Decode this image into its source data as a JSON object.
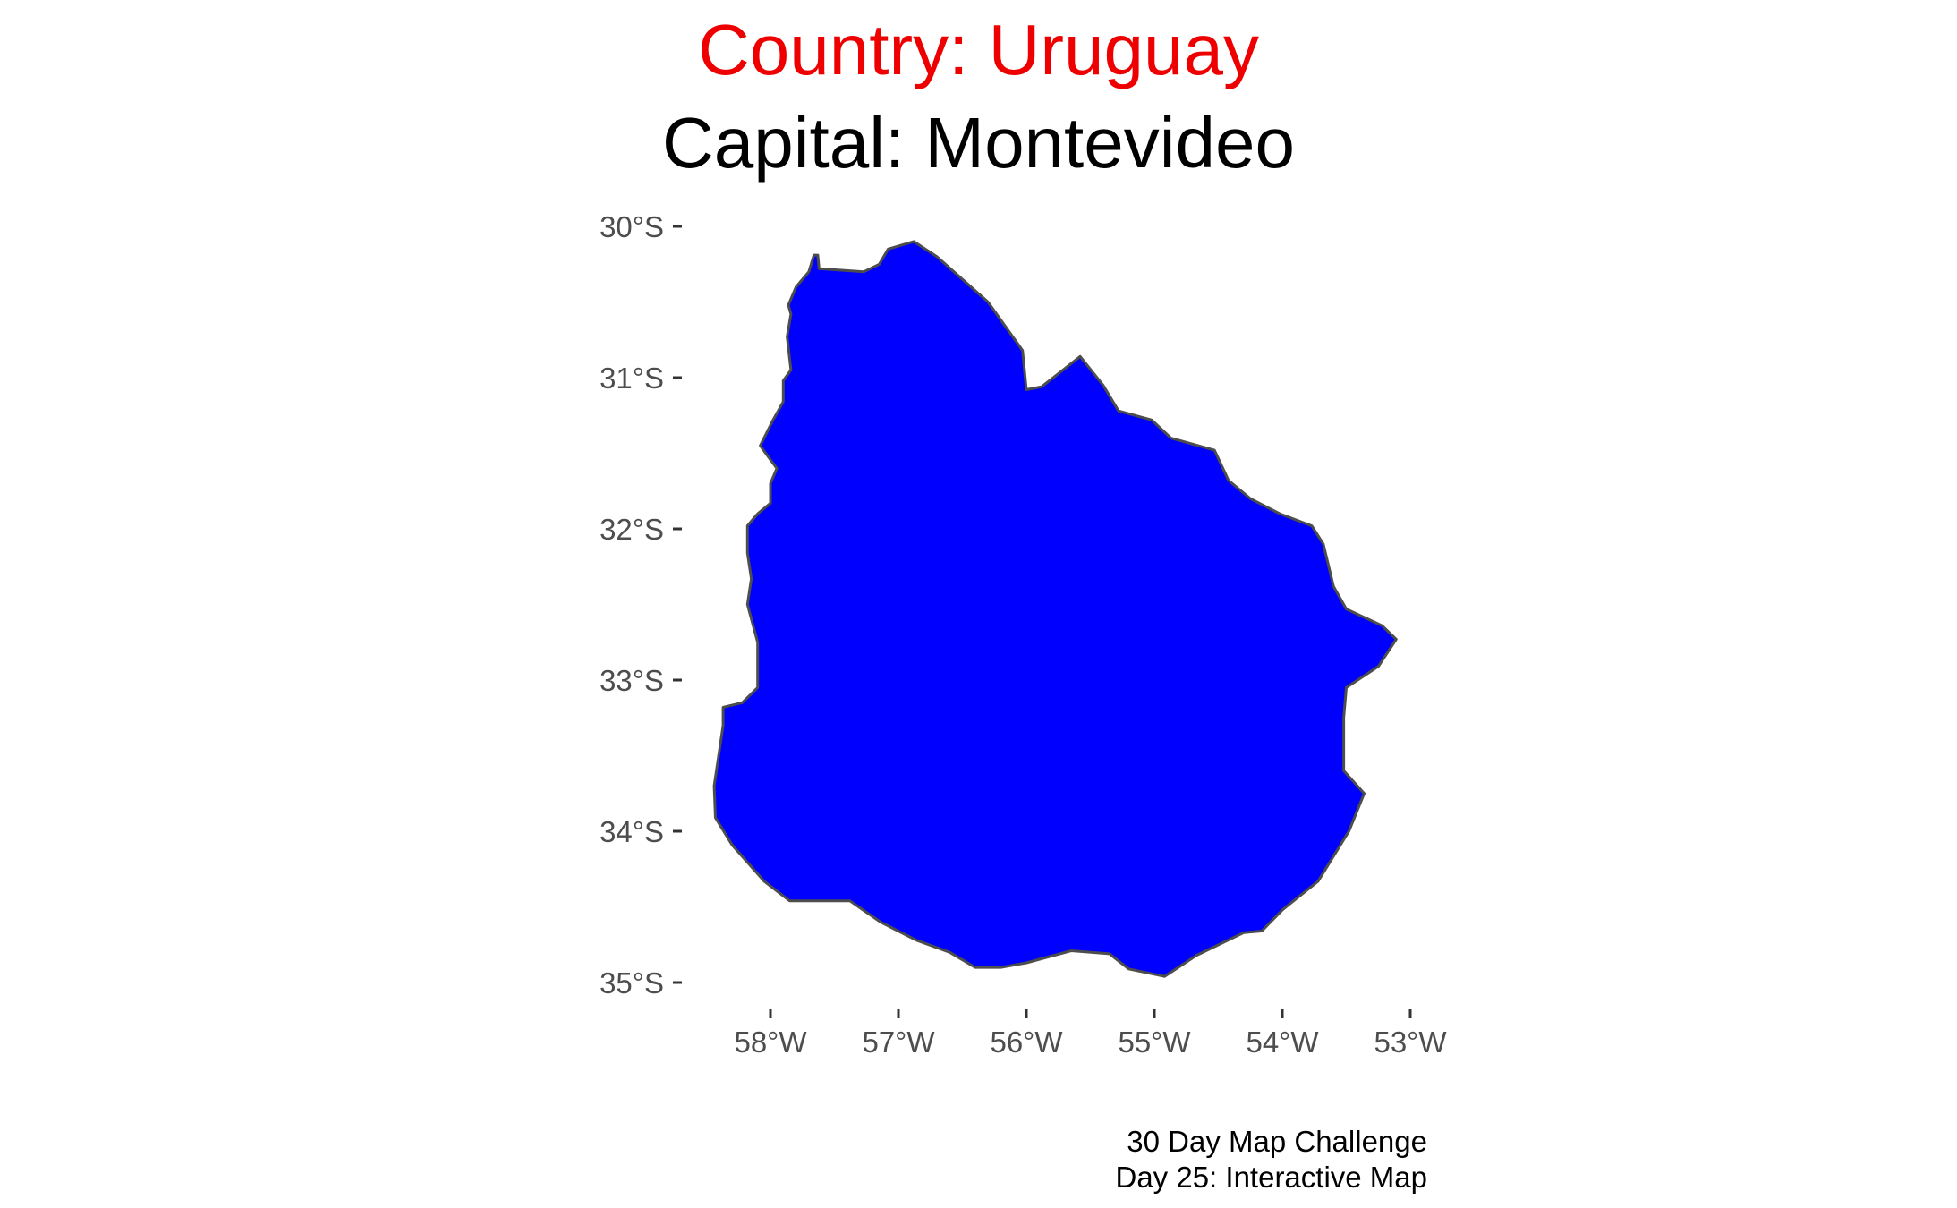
{
  "title": {
    "country": "Country: Uruguay",
    "capital": "Capital: Montevideo",
    "country_color": "#ee0000",
    "capital_color": "#000000"
  },
  "map": {
    "fill_color": "#0000ff",
    "stroke_color": "#4d4d4d",
    "lon_range": [
      -58.5,
      -53.0
    ],
    "lat_range": [
      -35.0,
      -30.0
    ],
    "x_ticks": [
      {
        "value": -58,
        "label": "58°W"
      },
      {
        "value": -57,
        "label": "57°W"
      },
      {
        "value": -56,
        "label": "56°W"
      },
      {
        "value": -55,
        "label": "55°W"
      },
      {
        "value": -54,
        "label": "54°W"
      },
      {
        "value": -53,
        "label": "53°W"
      }
    ],
    "y_ticks": [
      {
        "value": -30,
        "label": "30°S"
      },
      {
        "value": -31,
        "label": "31°S"
      },
      {
        "value": -32,
        "label": "32°S"
      },
      {
        "value": -33,
        "label": "33°S"
      },
      {
        "value": -34,
        "label": "34°S"
      },
      {
        "value": -35,
        "label": "35°S"
      }
    ],
    "outline": [
      [
        -57.63,
        -30.19
      ],
      [
        -57.62,
        -30.28
      ],
      [
        -57.27,
        -30.3
      ],
      [
        -57.15,
        -30.25
      ],
      [
        -57.08,
        -30.15
      ],
      [
        -56.88,
        -30.1
      ],
      [
        -56.7,
        -30.2
      ],
      [
        -56.3,
        -30.5
      ],
      [
        -56.03,
        -30.82
      ],
      [
        -56.0,
        -31.08
      ],
      [
        -55.88,
        -31.06
      ],
      [
        -55.7,
        -30.94
      ],
      [
        -55.58,
        -30.86
      ],
      [
        -55.4,
        -31.05
      ],
      [
        -55.28,
        -31.22
      ],
      [
        -55.02,
        -31.28
      ],
      [
        -54.87,
        -31.4
      ],
      [
        -54.53,
        -31.48
      ],
      [
        -54.42,
        -31.68
      ],
      [
        -54.25,
        -31.8
      ],
      [
        -54.02,
        -31.9
      ],
      [
        -53.77,
        -31.98
      ],
      [
        -53.68,
        -32.1
      ],
      [
        -53.6,
        -32.38
      ],
      [
        -53.5,
        -32.53
      ],
      [
        -53.22,
        -32.64
      ],
      [
        -53.11,
        -32.73
      ],
      [
        -53.25,
        -32.91
      ],
      [
        -53.5,
        -33.05
      ],
      [
        -53.52,
        -33.25
      ],
      [
        -53.52,
        -33.6
      ],
      [
        -53.36,
        -33.75
      ],
      [
        -53.48,
        -34.0
      ],
      [
        -53.72,
        -34.33
      ],
      [
        -54.0,
        -34.52
      ],
      [
        -54.16,
        -34.66
      ],
      [
        -54.3,
        -34.67
      ],
      [
        -54.67,
        -34.82
      ],
      [
        -54.92,
        -34.96
      ],
      [
        -55.2,
        -34.91
      ],
      [
        -55.35,
        -34.81
      ],
      [
        -55.65,
        -34.79
      ],
      [
        -56.0,
        -34.87
      ],
      [
        -56.2,
        -34.9
      ],
      [
        -56.4,
        -34.9
      ],
      [
        -56.6,
        -34.8
      ],
      [
        -56.86,
        -34.72
      ],
      [
        -57.14,
        -34.6
      ],
      [
        -57.38,
        -34.46
      ],
      [
        -57.85,
        -34.46
      ],
      [
        -58.05,
        -34.33
      ],
      [
        -58.3,
        -34.09
      ],
      [
        -58.43,
        -33.91
      ],
      [
        -58.44,
        -33.7
      ],
      [
        -58.37,
        -33.3
      ],
      [
        -58.37,
        -33.18
      ],
      [
        -58.22,
        -33.15
      ],
      [
        -58.1,
        -33.05
      ],
      [
        -58.1,
        -32.75
      ],
      [
        -58.18,
        -32.5
      ],
      [
        -58.15,
        -32.33
      ],
      [
        -58.18,
        -32.16
      ],
      [
        -58.18,
        -31.98
      ],
      [
        -58.1,
        -31.9
      ],
      [
        -58.0,
        -31.83
      ],
      [
        -58.0,
        -31.7
      ],
      [
        -57.95,
        -31.6
      ],
      [
        -58.02,
        -31.52
      ],
      [
        -58.08,
        -31.45
      ],
      [
        -57.98,
        -31.28
      ],
      [
        -57.9,
        -31.16
      ],
      [
        -57.9,
        -31.02
      ],
      [
        -57.84,
        -30.95
      ],
      [
        -57.87,
        -30.73
      ],
      [
        -57.84,
        -30.58
      ],
      [
        -57.86,
        -30.52
      ],
      [
        -57.8,
        -30.4
      ],
      [
        -57.7,
        -30.3
      ],
      [
        -57.66,
        -30.19
      ]
    ]
  },
  "caption": {
    "line1": "30 Day Map Challenge",
    "line2": "Day 25: Interactive Map"
  }
}
